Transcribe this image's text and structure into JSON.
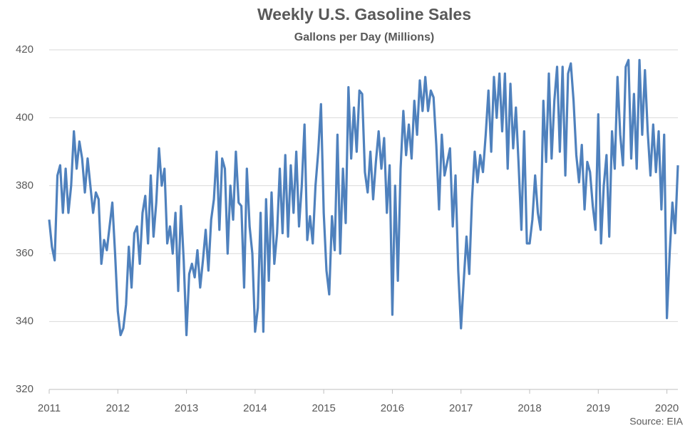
{
  "chart_data": {
    "type": "line",
    "title": "Weekly U.S. Gasoline Sales",
    "subtitle": "Gallons per Day (Millions)",
    "source": "Source: EIA",
    "x": [
      2011,
      2011.04,
      2011.08,
      2011.12,
      2011.16,
      2011.2,
      2011.24,
      2011.28,
      2011.32,
      2011.36,
      2011.4,
      2011.44,
      2011.48,
      2011.52,
      2011.56,
      2011.6,
      2011.64,
      2011.68,
      2011.72,
      2011.76,
      2011.8,
      2011.84,
      2011.88,
      2011.92,
      2011.96,
      2012,
      2012.04,
      2012.08,
      2012.12,
      2012.16,
      2012.2,
      2012.24,
      2012.28,
      2012.32,
      2012.36,
      2012.4,
      2012.44,
      2012.48,
      2012.52,
      2012.56,
      2012.6,
      2012.64,
      2012.68,
      2012.72,
      2012.76,
      2012.8,
      2012.84,
      2012.88,
      2012.92,
      2012.96,
      2013,
      2013.04,
      2013.08,
      2013.12,
      2013.16,
      2013.2,
      2013.24,
      2013.28,
      2013.32,
      2013.36,
      2013.4,
      2013.44,
      2013.48,
      2013.52,
      2013.56,
      2013.6,
      2013.64,
      2013.68,
      2013.72,
      2013.76,
      2013.8,
      2013.84,
      2013.88,
      2013.92,
      2013.96,
      2014,
      2014.04,
      2014.08,
      2014.12,
      2014.16,
      2014.2,
      2014.24,
      2014.28,
      2014.32,
      2014.36,
      2014.4,
      2014.44,
      2014.48,
      2014.52,
      2014.56,
      2014.6,
      2014.64,
      2014.68,
      2014.72,
      2014.76,
      2014.8,
      2014.84,
      2014.88,
      2014.92,
      2014.96,
      2015,
      2015.04,
      2015.08,
      2015.12,
      2015.16,
      2015.2,
      2015.24,
      2015.28,
      2015.32,
      2015.36,
      2015.4,
      2015.44,
      2015.48,
      2015.52,
      2015.56,
      2015.6,
      2015.64,
      2015.68,
      2015.72,
      2015.76,
      2015.8,
      2015.84,
      2015.88,
      2015.92,
      2015.96,
      2016,
      2016.04,
      2016.08,
      2016.12,
      2016.16,
      2016.2,
      2016.24,
      2016.28,
      2016.32,
      2016.36,
      2016.4,
      2016.44,
      2016.48,
      2016.52,
      2016.56,
      2016.6,
      2016.64,
      2016.68,
      2016.72,
      2016.76,
      2016.8,
      2016.84,
      2016.88,
      2016.92,
      2016.96,
      2017,
      2017.04,
      2017.08,
      2017.12,
      2017.16,
      2017.2,
      2017.24,
      2017.28,
      2017.32,
      2017.36,
      2017.4,
      2017.44,
      2017.48,
      2017.52,
      2017.56,
      2017.6,
      2017.64,
      2017.68,
      2017.72,
      2017.76,
      2017.8,
      2017.84,
      2017.88,
      2017.92,
      2017.96,
      2018,
      2018.04,
      2018.08,
      2018.12,
      2018.16,
      2018.2,
      2018.24,
      2018.28,
      2018.32,
      2018.36,
      2018.4,
      2018.44,
      2018.48,
      2018.52,
      2018.56,
      2018.6,
      2018.64,
      2018.68,
      2018.72,
      2018.76,
      2018.8,
      2018.84,
      2018.88,
      2018.92,
      2018.96,
      2019,
      2019.04,
      2019.08,
      2019.12,
      2019.16,
      2019.2,
      2019.24,
      2019.28,
      2019.32,
      2019.36,
      2019.4,
      2019.44,
      2019.48,
      2019.52,
      2019.56,
      2019.6,
      2019.64,
      2019.68,
      2019.72,
      2019.76,
      2019.8,
      2019.84,
      2019.88,
      2019.92,
      2019.96,
      2020,
      2020.04,
      2020.08,
      2020.12,
      2020.16
    ],
    "series": [
      {
        "color": "#4f81bd",
        "values": [
          370,
          362,
          358,
          383,
          386,
          372,
          385,
          372,
          380,
          396,
          385,
          393,
          388,
          378,
          388,
          380,
          372,
          378,
          376,
          357,
          364,
          361,
          368,
          375,
          360,
          343,
          336,
          338,
          345,
          362,
          350,
          366,
          368,
          357,
          372,
          377,
          363,
          383,
          365,
          375,
          391,
          380,
          385,
          363,
          368,
          360,
          372,
          349,
          374,
          358,
          336,
          354,
          357,
          353,
          361,
          350,
          358,
          367,
          355,
          370,
          376,
          390,
          367,
          388,
          385,
          360,
          380,
          370,
          390,
          375,
          374,
          350,
          385,
          368,
          360,
          337,
          344,
          372,
          337,
          376,
          352,
          378,
          357,
          366,
          385,
          366,
          389,
          365,
          386,
          372,
          390,
          368,
          380,
          398,
          364,
          371,
          363,
          380,
          390,
          404,
          372,
          355,
          348,
          371,
          361,
          395,
          360,
          385,
          369,
          409,
          388,
          403,
          390,
          408,
          407,
          384,
          378,
          390,
          376,
          387,
          396,
          385,
          394,
          372,
          386,
          342,
          380,
          352,
          385,
          402,
          389,
          398,
          388,
          405,
          395,
          411,
          402,
          412,
          402,
          408,
          406,
          392,
          373,
          395,
          383,
          387,
          391,
          368,
          383,
          355,
          338,
          352,
          365,
          354,
          376,
          390,
          381,
          389,
          384,
          395,
          408,
          390,
          412,
          400,
          413,
          396,
          413,
          385,
          410,
          391,
          403,
          386,
          367,
          396,
          363,
          363,
          370,
          383,
          372,
          367,
          405,
          387,
          413,
          388,
          405,
          415,
          390,
          415,
          383,
          413,
          416,
          405,
          389,
          381,
          392,
          373,
          387,
          384,
          374,
          367,
          401,
          363,
          380,
          389,
          365,
          396,
          385,
          412,
          395,
          386,
          415,
          417,
          388,
          407,
          385,
          417,
          395,
          414,
          396,
          383,
          398,
          384,
          396,
          373,
          395,
          341,
          360,
          375,
          366,
          386
        ]
      }
    ],
    "xlim": [
      2011,
      2020.16
    ],
    "xticks": [
      2011,
      2012,
      2013,
      2014,
      2015,
      2016,
      2017,
      2018,
      2019,
      2020
    ],
    "ylim": [
      320,
      420
    ],
    "yticks": [
      320,
      340,
      360,
      380,
      400,
      420
    ],
    "grid": true
  }
}
